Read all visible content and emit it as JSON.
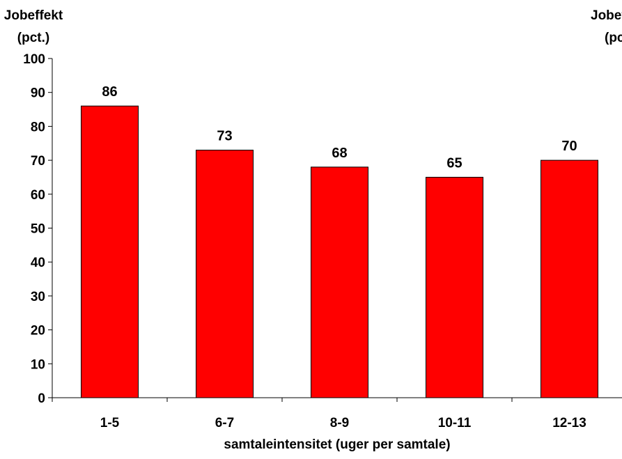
{
  "chart_data": {
    "type": "bar",
    "categories": [
      "1-5",
      "6-7",
      "8-9",
      "10-11",
      "12-13"
    ],
    "values": [
      86,
      73,
      68,
      65,
      70
    ],
    "data_labels": [
      "86",
      "73",
      "68",
      "65",
      "70"
    ],
    "ylabel_left": [
      "Jobeffekt",
      "(pct.)"
    ],
    "ylabel_right": [
      "Jobeffekt",
      "(pct.)"
    ],
    "xlabel": "samtaleintensitet (uger per samtale)",
    "ylim": [
      0,
      100
    ],
    "yticks": [
      "0",
      "10",
      "20",
      "30",
      "40",
      "50",
      "60",
      "70",
      "80",
      "90",
      "100"
    ],
    "bar_color": "#ff0000",
    "bar_edge_color": "#000000",
    "grid": false,
    "legend": "none"
  }
}
